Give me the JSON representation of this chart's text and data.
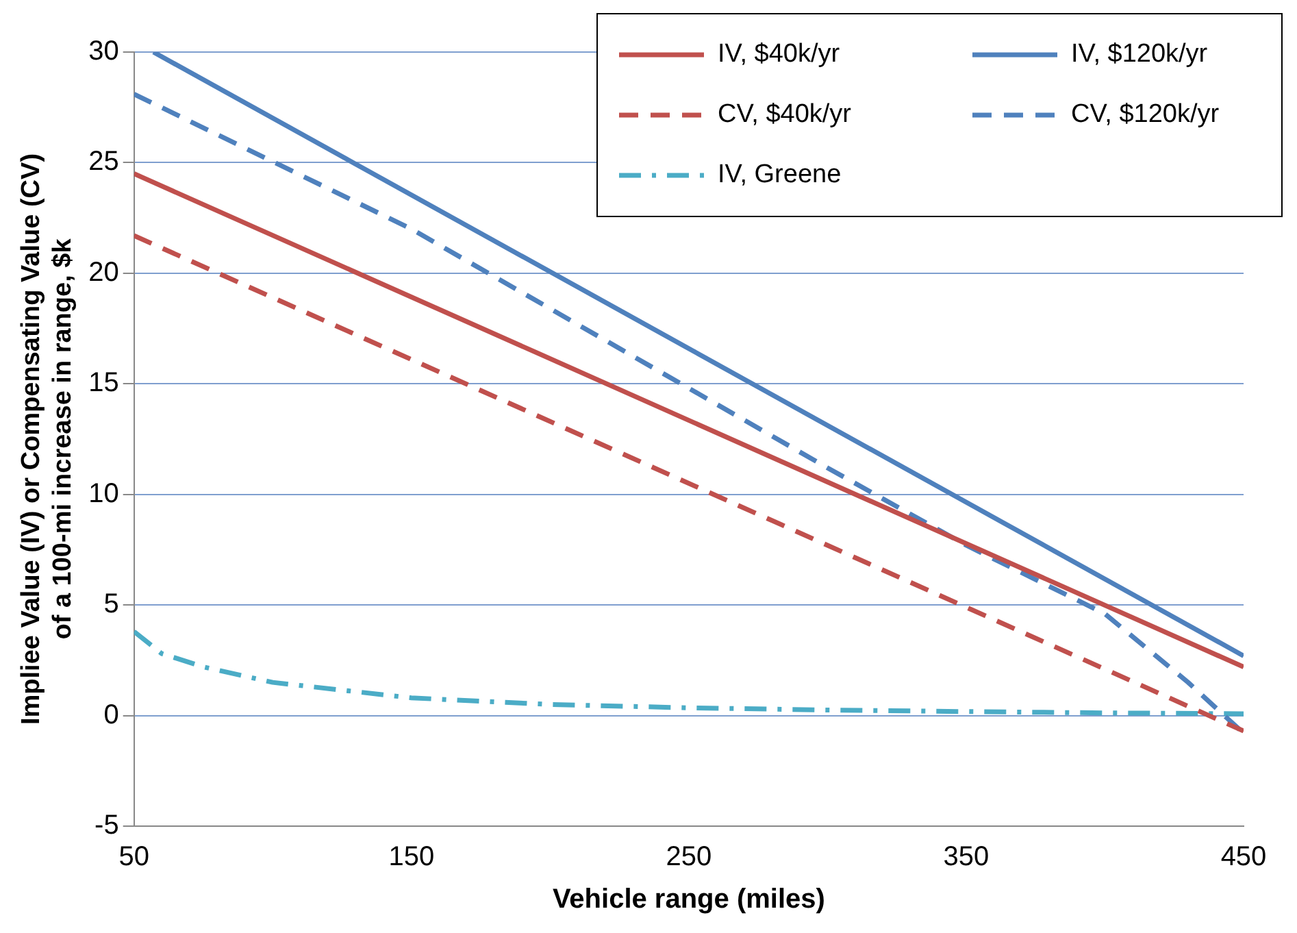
{
  "chart_data": {
    "type": "line",
    "xlabel": "Vehicle range (miles)",
    "ylabel": "Impliee Value (IV) or Compensating Value (CV) of a 100-mi increase in range, $k",
    "xlim": [
      50,
      450
    ],
    "xticks": [
      50,
      150,
      250,
      350,
      450
    ],
    "ylim": [
      -5,
      30
    ],
    "yticks": [
      -5,
      0,
      5,
      10,
      15,
      20,
      25,
      30
    ],
    "grid": "y",
    "legend": "top right",
    "marker": "none",
    "series": [
      {
        "name": "IV, $40k/yr",
        "color": "#c0504d",
        "line_style": "solid",
        "x": [
          50,
          450
        ],
        "values": [
          24.5,
          2.2
        ]
      },
      {
        "name": "IV, $120k/yr",
        "color": "#4f81bd",
        "line_style": "solid",
        "x": [
          57,
          450
        ],
        "values": [
          30,
          2.7
        ]
      },
      {
        "name": "CV, $40k/yr",
        "color": "#c0504d",
        "line_style": "dashed",
        "x": [
          50,
          450
        ],
        "values": [
          21.7,
          -0.7
        ]
      },
      {
        "name": "CV, $120k/yr",
        "color": "#4f81bd",
        "line_style": "dashed",
        "x": [
          50,
          150,
          250,
          300,
          350,
          400,
          430,
          450
        ],
        "values": [
          28.1,
          22,
          14.8,
          11.2,
          7.7,
          4.6,
          1.5,
          -0.8
        ]
      },
      {
        "name": "IV, Greene",
        "color": "#4bacc6",
        "line_style": "dotted",
        "x": [
          50,
          60,
          75,
          100,
          150,
          200,
          250,
          300,
          350,
          400,
          450
        ],
        "values": [
          3.8,
          2.8,
          2.2,
          1.5,
          0.8,
          0.5,
          0.35,
          0.25,
          0.18,
          0.12,
          0.08
        ]
      }
    ]
  }
}
